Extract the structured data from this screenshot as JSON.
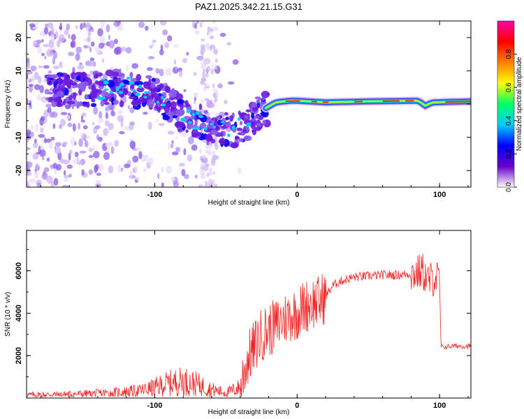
{
  "title": "PAZ1.2025.342.21.15.G31",
  "chart_data": [
    {
      "type": "heatmap",
      "xlabel": "Height of straight line (km)",
      "ylabel": "Frequency (Hz)",
      "xlim": [
        -190,
        122
      ],
      "ylim": [
        -25,
        25
      ],
      "xticks": [
        -100,
        0,
        100
      ],
      "yticks": [
        -20,
        -10,
        0,
        10,
        20
      ],
      "colorbar": {
        "label": "Normalized spectral amplitude",
        "range": [
          0.0,
          1.0
        ],
        "ticks": [
          0.0,
          0.2,
          0.4,
          0.6,
          0.8
        ],
        "colors": [
          "#ffffff",
          "#6600cc",
          "#0000ff",
          "#00ccff",
          "#00ff66",
          "#ffff00",
          "#ff8000",
          "#ff0000",
          "#ff00aa"
        ]
      },
      "ridge": {
        "description": "frequency of strongest signal vs height",
        "x": [
          -160,
          -120,
          -100,
          -80,
          -60,
          -45,
          -35,
          -25,
          -15,
          -5,
          0,
          20,
          50,
          85,
          90,
          95,
          122
        ],
        "y": [
          4,
          5,
          3,
          -3,
          -7,
          -8,
          -6,
          -2,
          0.5,
          1,
          1,
          0.5,
          0.8,
          1,
          -0.5,
          0.5,
          0.8
        ]
      }
    },
    {
      "type": "line",
      "xlabel": "Height of straight line (km)",
      "ylabel": "SNR (10 * v/v)",
      "xlim": [
        -190,
        122
      ],
      "ylim": [
        0,
        7900
      ],
      "xticks": [
        -100,
        0,
        100
      ],
      "yticks": [
        2000,
        4000,
        6000
      ],
      "series": [
        {
          "name": "SNR",
          "color": "#ee2222",
          "x": [
            -190,
            -160,
            -130,
            -110,
            -100,
            -90,
            -80,
            -70,
            -60,
            -50,
            -40,
            -35,
            -30,
            -25,
            -20,
            -15,
            -10,
            -5,
            0,
            5,
            10,
            15,
            20,
            25,
            30,
            40,
            50,
            60,
            70,
            80,
            85,
            88,
            92,
            97,
            99,
            100,
            101,
            110,
            122
          ],
          "values": [
            150,
            180,
            250,
            350,
            500,
            700,
            800,
            650,
            400,
            250,
            500,
            1800,
            2400,
            3000,
            3200,
            3400,
            3700,
            3900,
            4000,
            4300,
            4500,
            4500,
            4800,
            5300,
            5500,
            5700,
            5750,
            5800,
            5800,
            5850,
            5900,
            6000,
            5500,
            5700,
            5600,
            5500,
            2400,
            2450,
            2450
          ]
        }
      ]
    }
  ]
}
